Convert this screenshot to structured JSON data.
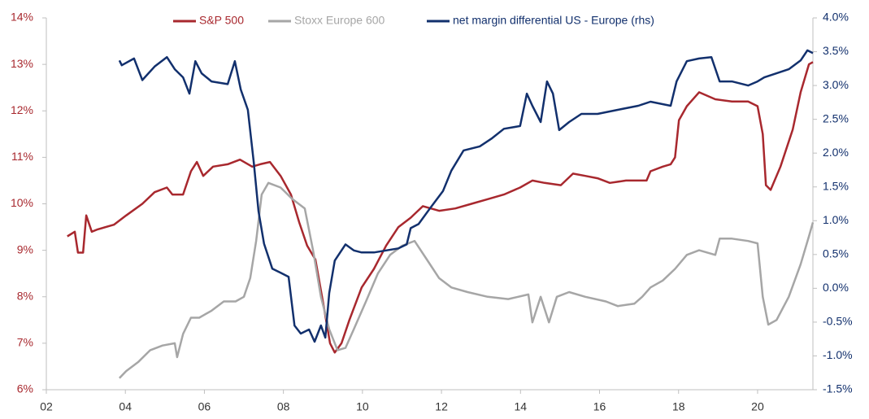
{
  "chart_data": {
    "type": "line",
    "xlim": [
      2002,
      2021.4
    ],
    "ylim": [
      6,
      14
    ],
    "y2lim": [
      -1.5,
      4
    ],
    "xticks": [
      {
        "value": 2002,
        "label": "02"
      },
      {
        "value": 2004,
        "label": "04"
      },
      {
        "value": 2006,
        "label": "06"
      },
      {
        "value": 2008,
        "label": "08"
      },
      {
        "value": 2010,
        "label": "10"
      },
      {
        "value": 2012,
        "label": "12"
      },
      {
        "value": 2014,
        "label": "14"
      },
      {
        "value": 2016,
        "label": "16"
      },
      {
        "value": 2018,
        "label": "18"
      },
      {
        "value": 2020,
        "label": "20"
      }
    ],
    "yticks": [
      {
        "value": 6,
        "label": "6%"
      },
      {
        "value": 7,
        "label": "7%"
      },
      {
        "value": 8,
        "label": "8%"
      },
      {
        "value": 9,
        "label": "9%"
      },
      {
        "value": 10,
        "label": "10%"
      },
      {
        "value": 11,
        "label": "11%"
      },
      {
        "value": 12,
        "label": "12%"
      },
      {
        "value": 13,
        "label": "13%"
      },
      {
        "value": 14,
        "label": "14%"
      }
    ],
    "y2ticks": [
      {
        "value": -1.5,
        "label": "-1.5%"
      },
      {
        "value": -1,
        "label": "-1.0%"
      },
      {
        "value": -0.5,
        "label": "-0.5%"
      },
      {
        "value": 0,
        "label": "0.0%"
      },
      {
        "value": 0.5,
        "label": "0.5%"
      },
      {
        "value": 1,
        "label": "1.0%"
      },
      {
        "value": 1.5,
        "label": "1.5%"
      },
      {
        "value": 2,
        "label": "2.0%"
      },
      {
        "value": 2.5,
        "label": "2.5%"
      },
      {
        "value": 3,
        "label": "3.0%"
      },
      {
        "value": 3.5,
        "label": "3.5%"
      },
      {
        "value": 4,
        "label": "4.0%"
      }
    ],
    "legend": "top",
    "series": [
      {
        "name": "S&P 500",
        "color": "#a8282e",
        "axis": "y",
        "x": [
          2002.53,
          2002.72,
          2002.8,
          2002.93,
          2003.01,
          2003.15,
          2003.3,
          2003.71,
          2004.02,
          2004.43,
          2004.74,
          2005.05,
          2005.19,
          2005.46,
          2005.66,
          2005.81,
          2005.97,
          2006.22,
          2006.59,
          2006.9,
          2007.21,
          2007.41,
          2007.66,
          2007.93,
          2008.19,
          2008.4,
          2008.6,
          2008.81,
          2009.02,
          2009.18,
          2009.3,
          2009.47,
          2009.67,
          2009.98,
          2010.29,
          2010.6,
          2010.91,
          2011.22,
          2011.53,
          2011.94,
          2012.35,
          2012.76,
          2013.17,
          2013.58,
          2013.99,
          2014.3,
          2014.61,
          2015.02,
          2015.33,
          2015.64,
          2015.95,
          2016.26,
          2016.67,
          2017.19,
          2017.29,
          2017.6,
          2017.8,
          2017.91,
          2018.01,
          2018.21,
          2018.52,
          2018.93,
          2019.35,
          2019.76,
          2020.0,
          2020.13,
          2020.21,
          2020.33,
          2020.58,
          2020.89,
          2021.09,
          2021.3,
          2021.4
        ],
        "values": [
          9.3,
          9.4,
          8.95,
          8.95,
          9.75,
          9.4,
          9.45,
          9.55,
          9.75,
          10.0,
          10.25,
          10.35,
          10.2,
          10.2,
          10.7,
          10.9,
          10.6,
          10.8,
          10.85,
          10.95,
          10.8,
          10.85,
          10.9,
          10.6,
          10.2,
          9.6,
          9.1,
          8.8,
          7.8,
          7.0,
          6.8,
          7.0,
          7.5,
          8.2,
          8.6,
          9.1,
          9.5,
          9.7,
          9.95,
          9.85,
          9.9,
          10.0,
          10.1,
          10.2,
          10.35,
          10.5,
          10.45,
          10.4,
          10.65,
          10.6,
          10.55,
          10.45,
          10.5,
          10.5,
          10.7,
          10.8,
          10.85,
          11.0,
          11.8,
          12.1,
          12.4,
          12.25,
          12.2,
          12.2,
          12.1,
          11.5,
          10.4,
          10.3,
          10.8,
          11.6,
          12.4,
          13.0,
          13.05
        ]
      },
      {
        "name": "Stoxx Europe 600",
        "color": "#a6a6a6",
        "axis": "y",
        "x": [
          2003.85,
          2004.02,
          2004.33,
          2004.63,
          2004.94,
          2005.25,
          2005.31,
          2005.46,
          2005.66,
          2005.87,
          2006.18,
          2006.49,
          2006.79,
          2007.0,
          2007.16,
          2007.31,
          2007.45,
          2007.62,
          2007.93,
          2008.23,
          2008.54,
          2008.75,
          2008.95,
          2009.16,
          2009.37,
          2009.57,
          2009.78,
          2010.09,
          2010.39,
          2010.7,
          2011.01,
          2011.32,
          2011.63,
          2011.94,
          2012.25,
          2012.66,
          2013.17,
          2013.69,
          2014.2,
          2014.3,
          2014.51,
          2014.72,
          2014.92,
          2015.23,
          2015.64,
          2016.16,
          2016.46,
          2016.88,
          2017.08,
          2017.29,
          2017.6,
          2017.91,
          2018.21,
          2018.52,
          2018.93,
          2019.04,
          2019.35,
          2019.76,
          2020.0,
          2020.13,
          2020.27,
          2020.48,
          2020.79,
          2021.09,
          2021.3,
          2021.4
        ],
        "values": [
          6.25,
          6.4,
          6.6,
          6.85,
          6.95,
          7.0,
          6.7,
          7.2,
          7.55,
          7.55,
          7.7,
          7.9,
          7.9,
          8.0,
          8.4,
          9.2,
          10.2,
          10.45,
          10.35,
          10.1,
          9.9,
          9.0,
          8.0,
          7.3,
          6.85,
          6.9,
          7.3,
          7.9,
          8.5,
          8.9,
          9.1,
          9.2,
          8.8,
          8.4,
          8.2,
          8.1,
          8.0,
          7.95,
          8.05,
          7.45,
          8.0,
          7.45,
          8.0,
          8.1,
          8.0,
          7.9,
          7.8,
          7.85,
          8.0,
          8.2,
          8.35,
          8.6,
          8.9,
          9.0,
          8.9,
          9.25,
          9.25,
          9.2,
          9.15,
          8.0,
          7.4,
          7.5,
          8.0,
          8.7,
          9.3,
          9.6
        ]
      },
      {
        "name": "net margin differential US - Europe (rhs)",
        "color": "#12306d",
        "axis": "y2",
        "x": [
          2003.85,
          2003.91,
          2004.22,
          2004.43,
          2004.74,
          2005.05,
          2005.25,
          2005.46,
          2005.62,
          2005.77,
          2005.93,
          2006.18,
          2006.59,
          2006.77,
          2006.92,
          2007.1,
          2007.25,
          2007.37,
          2007.51,
          2007.72,
          2007.93,
          2008.13,
          2008.28,
          2008.44,
          2008.65,
          2008.79,
          2008.95,
          2009.06,
          2009.16,
          2009.3,
          2009.57,
          2009.78,
          2009.98,
          2010.29,
          2010.6,
          2010.91,
          2011.12,
          2011.22,
          2011.42,
          2011.73,
          2012.04,
          2012.25,
          2012.56,
          2012.97,
          2013.28,
          2013.58,
          2013.99,
          2014.16,
          2014.3,
          2014.51,
          2014.67,
          2014.82,
          2014.98,
          2015.23,
          2015.54,
          2015.95,
          2016.46,
          2016.98,
          2017.29,
          2017.8,
          2017.95,
          2018.21,
          2018.52,
          2018.83,
          2019.04,
          2019.35,
          2019.76,
          2020.0,
          2020.17,
          2020.48,
          2020.79,
          2021.09,
          2021.26,
          2021.4
        ],
        "values": [
          3.37,
          3.3,
          3.4,
          3.08,
          3.28,
          3.42,
          3.24,
          3.12,
          2.88,
          3.36,
          3.18,
          3.06,
          3.02,
          3.36,
          2.94,
          2.64,
          1.86,
          1.14,
          0.66,
          0.29,
          0.23,
          0.17,
          -0.55,
          -0.67,
          -0.61,
          -0.79,
          -0.55,
          -0.73,
          -0.07,
          0.41,
          0.65,
          0.56,
          0.53,
          0.53,
          0.56,
          0.59,
          0.65,
          0.89,
          0.95,
          1.2,
          1.44,
          1.74,
          2.04,
          2.1,
          2.22,
          2.36,
          2.4,
          2.88,
          2.7,
          2.46,
          3.06,
          2.88,
          2.34,
          2.46,
          2.58,
          2.58,
          2.64,
          2.7,
          2.76,
          2.7,
          3.06,
          3.36,
          3.4,
          3.42,
          3.06,
          3.06,
          3.0,
          3.06,
          3.12,
          3.18,
          3.24,
          3.37,
          3.52,
          3.48
        ]
      }
    ]
  }
}
